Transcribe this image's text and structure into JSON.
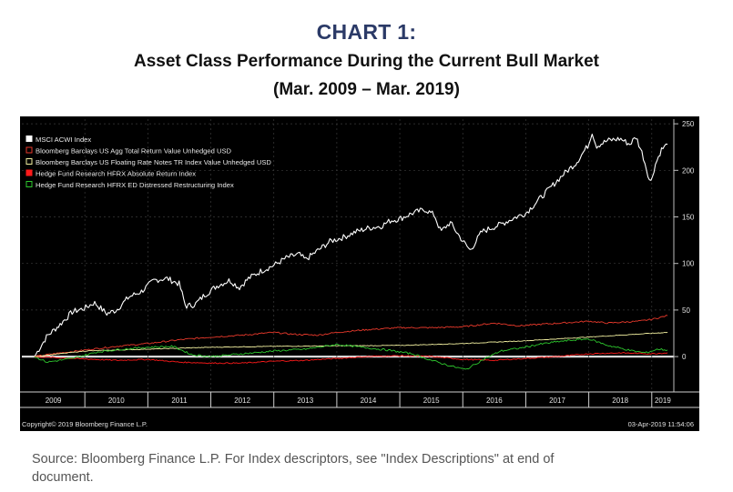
{
  "header": {
    "chart_label": "CHART 1:",
    "title": "Asset Class Performance During the Current Bull Market",
    "subtitle": "(Mar. 2009 – Mar. 2019)"
  },
  "footer": {
    "source": "Source: Bloomberg Finance L.P. For Index descriptors, see \"Index Descriptions\" at end of document."
  },
  "chart_data": {
    "type": "line",
    "title": "Asset Class Performance During the Current Bull Market",
    "xlabel": "",
    "ylabel": "",
    "xlim": [
      2009.0,
      2019.35
    ],
    "ylim": [
      -38,
      255
    ],
    "yticks": [
      250,
      200,
      150,
      100,
      50,
      0
    ],
    "ytick_labels": [
      "250",
      "200",
      "150",
      "100",
      "50",
      "0"
    ],
    "xtick_labels": [
      "2009",
      "2010",
      "2011",
      "2012",
      "2013",
      "2014",
      "2015",
      "2016",
      "2017",
      "2018",
      "2019"
    ],
    "copyright": "Copyright© 2019 Bloomberg Finance L.P.",
    "timestamp": "03-Apr-2019 11:54:06",
    "background": "#000000",
    "zero_line_color": "#d8d8d8",
    "series": [
      {
        "name": "MSCI ACWI Index",
        "color": "#ffffff",
        "x": [
          2009.2,
          2009.4,
          2009.6,
          2009.8,
          2010.0,
          2010.15,
          2010.35,
          2010.5,
          2010.7,
          2010.9,
          2011.1,
          2011.3,
          2011.5,
          2011.6,
          2011.75,
          2011.9,
          2012.1,
          2012.3,
          2012.45,
          2012.6,
          2012.8,
          2013.0,
          2013.2,
          2013.4,
          2013.5,
          2013.7,
          2013.9,
          2014.1,
          2014.3,
          2014.5,
          2014.7,
          2014.85,
          2015.0,
          2015.2,
          2015.4,
          2015.55,
          2015.65,
          2015.8,
          2016.0,
          2016.12,
          2016.3,
          2016.45,
          2016.6,
          2016.85,
          2017.0,
          2017.2,
          2017.4,
          2017.6,
          2017.8,
          2018.0,
          2018.05,
          2018.12,
          2018.3,
          2018.5,
          2018.65,
          2018.75,
          2018.85,
          2018.98,
          2019.05,
          2019.15,
          2019.25
        ],
        "values": [
          0,
          22,
          34,
          48,
          52,
          58,
          46,
          50,
          64,
          70,
          82,
          84,
          78,
          54,
          56,
          66,
          76,
          82,
          74,
          84,
          92,
          98,
          106,
          110,
          104,
          114,
          124,
          128,
          134,
          138,
          140,
          146,
          148,
          154,
          158,
          152,
          134,
          144,
          124,
          114,
          134,
          138,
          142,
          150,
          154,
          168,
          182,
          196,
          208,
          228,
          242,
          226,
          232,
          234,
          228,
          236,
          218,
          186,
          205,
          222,
          228
        ]
      },
      {
        "name": "Bloomberg Barclays US Agg Total Return Value Unhedged USD",
        "color": "#e8392b",
        "x": [
          2009.2,
          2009.5,
          2010.0,
          2010.5,
          2011.0,
          2011.5,
          2012.0,
          2012.5,
          2013.0,
          2013.3,
          2013.7,
          2014.0,
          2014.5,
          2015.0,
          2015.5,
          2016.0,
          2016.5,
          2016.9,
          2017.3,
          2017.8,
          2018.0,
          2018.3,
          2018.8,
          2019.0,
          2019.25
        ],
        "values": [
          0,
          3,
          7,
          11,
          14,
          18,
          21,
          23,
          26,
          24,
          23,
          26,
          29,
          31,
          31,
          32,
          36,
          33,
          35,
          37,
          38,
          36,
          38,
          40,
          44
        ]
      },
      {
        "name": "Bloomberg Barclays US Floating Rate Notes TR Index Value Unhedged USD",
        "color": "#f2f0a0",
        "x": [
          2009.2,
          2010.0,
          2011.0,
          2012.0,
          2013.0,
          2014.0,
          2015.0,
          2016.0,
          2017.0,
          2018.0,
          2019.0,
          2019.25
        ],
        "values": [
          0,
          6,
          8,
          10,
          11,
          11.5,
          12,
          14,
          17,
          21,
          25,
          26
        ]
      },
      {
        "name": "Hedge Fund Research HFRX Absolute Return Index",
        "color": "#ff1a1a",
        "x": [
          2009.2,
          2009.8,
          2010.5,
          2011.0,
          2011.5,
          2012.0,
          2012.5,
          2013.0,
          2013.5,
          2014.0,
          2014.5,
          2015.0,
          2015.5,
          2016.0,
          2016.5,
          2017.0,
          2017.5,
          2018.0,
          2018.5,
          2019.0,
          2019.25
        ],
        "values": [
          0,
          -2,
          -4,
          -3,
          -6,
          -7,
          -7,
          -5,
          -4,
          -2,
          0,
          1,
          0,
          -3,
          -4,
          -2,
          0,
          3,
          4,
          3,
          4
        ]
      },
      {
        "name": "Hedge Fund Research HFRX ED Distressed Restructuring Index",
        "color": "#2ec82e",
        "x": [
          2009.2,
          2009.4,
          2009.8,
          2010.2,
          2010.6,
          2011.0,
          2011.4,
          2011.7,
          2012.0,
          2012.5,
          2013.0,
          2013.5,
          2014.0,
          2014.4,
          2014.8,
          2015.2,
          2015.5,
          2015.8,
          2016.05,
          2016.3,
          2016.6,
          2016.9,
          2017.2,
          2017.5,
          2017.8,
          2018.0,
          2018.3,
          2018.7,
          2018.9,
          2019.1,
          2019.25
        ],
        "values": [
          0,
          -6,
          -2,
          5,
          8,
          10,
          11,
          2,
          0,
          3,
          6,
          8,
          13,
          10,
          7,
          3,
          -4,
          -10,
          -14,
          -4,
          6,
          9,
          13,
          16,
          18,
          19,
          12,
          6,
          4,
          8,
          7
        ]
      }
    ]
  }
}
